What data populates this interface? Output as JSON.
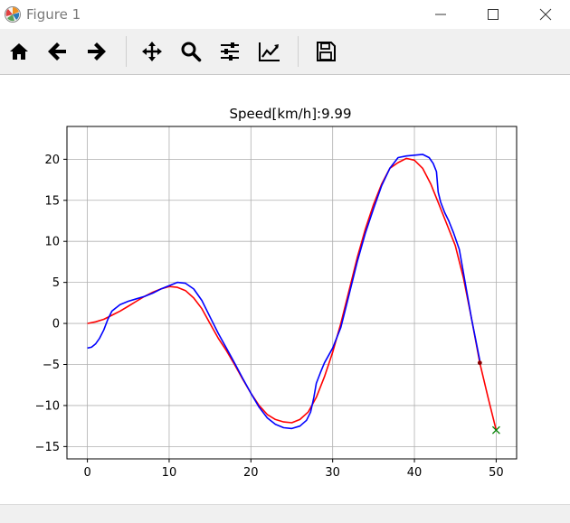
{
  "window": {
    "title": "Figure 1"
  },
  "toolbar": {
    "buttons": [
      {
        "name": "home-icon"
      },
      {
        "name": "back-arrow-icon"
      },
      {
        "name": "forward-arrow-icon"
      },
      {
        "name": "pan-move-icon"
      },
      {
        "name": "zoom-magnifier-icon"
      },
      {
        "name": "configure-subplots-icon"
      },
      {
        "name": "edit-axis-icon"
      },
      {
        "name": "save-floppy-icon"
      }
    ]
  },
  "chart_data": {
    "type": "line",
    "title": "Speed[km/h]:9.99",
    "xlabel": "",
    "ylabel": "",
    "xlim": [
      -2.5,
      52.5
    ],
    "ylim": [
      -16.5,
      24.0
    ],
    "xticks": [
      0,
      10,
      20,
      30,
      40,
      50
    ],
    "yticks": [
      -15,
      -10,
      -5,
      0,
      5,
      10,
      15,
      20
    ],
    "grid": true,
    "series": [
      {
        "color": "#ff0000",
        "x": [
          0,
          1,
          2,
          3,
          4,
          5,
          6,
          7,
          8,
          9,
          10,
          11,
          12,
          13,
          14,
          15,
          16,
          17,
          18,
          19,
          20,
          21,
          22,
          23,
          24,
          25,
          26,
          27,
          28,
          29,
          30,
          31,
          32,
          33,
          34,
          35,
          36,
          37,
          38,
          39,
          40,
          41,
          42,
          43,
          44,
          45,
          46,
          47,
          48,
          49,
          50
        ],
        "y": [
          0,
          0.2,
          0.5,
          1.0,
          1.5,
          2.1,
          2.7,
          3.3,
          3.8,
          4.2,
          4.5,
          4.4,
          4.0,
          3.1,
          1.8,
          0.0,
          -1.8,
          -3.3,
          -5.0,
          -6.8,
          -8.5,
          -10.0,
          -11.1,
          -11.7,
          -12.0,
          -12.1,
          -11.7,
          -10.8,
          -9.0,
          -6.5,
          -3.5,
          0.0,
          4.0,
          8.0,
          11.5,
          14.5,
          17.0,
          18.9,
          19.6,
          20.1,
          19.9,
          18.9,
          17.0,
          14.5,
          12.0,
          9.5,
          5.5,
          0.5,
          -4.8,
          -9.0,
          -13.0
        ]
      },
      {
        "color": "#0000ff",
        "x": [
          0,
          0.5,
          1,
          1.5,
          2,
          2.5,
          3,
          4,
          5,
          6,
          7,
          8,
          9,
          10,
          11,
          12,
          13,
          14,
          15,
          16,
          17,
          18,
          19,
          20,
          21,
          22,
          23,
          24,
          25,
          26,
          26.8,
          27.3,
          27.7,
          28,
          28.5,
          29,
          30,
          31,
          32,
          33,
          34,
          35,
          36,
          37,
          38,
          39,
          40,
          41,
          41.8,
          42.3,
          42.7,
          42.9,
          43.2,
          43.7,
          44.2,
          44.8,
          45.5,
          46.2,
          47,
          48
        ],
        "y": [
          -3.0,
          -2.9,
          -2.5,
          -1.8,
          -0.8,
          0.5,
          1.5,
          2.3,
          2.7,
          3.0,
          3.3,
          3.7,
          4.2,
          4.6,
          5.0,
          4.9,
          4.2,
          2.8,
          0.8,
          -1.2,
          -3.0,
          -4.8,
          -6.7,
          -8.5,
          -10.2,
          -11.5,
          -12.3,
          -12.7,
          -12.8,
          -12.5,
          -11.8,
          -10.8,
          -9.0,
          -7.3,
          -6.0,
          -4.8,
          -3.0,
          -0.5,
          3.5,
          7.5,
          11.0,
          14.0,
          16.8,
          18.9,
          20.2,
          20.4,
          20.5,
          20.6,
          20.2,
          19.5,
          18.5,
          16.0,
          14.8,
          13.5,
          12.5,
          11.0,
          9.0,
          5.0,
          0.5,
          -4.5
        ]
      }
    ],
    "markers": [
      {
        "x": 48,
        "y": -4.8,
        "color": "#8b0000",
        "shape": "dot"
      },
      {
        "x": 50,
        "y": -13.0,
        "color": "#008000",
        "shape": "x"
      }
    ]
  }
}
